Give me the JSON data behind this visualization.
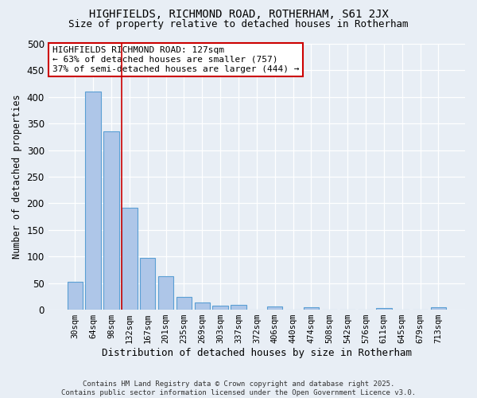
{
  "title1": "HIGHFIELDS, RICHMOND ROAD, ROTHERHAM, S61 2JX",
  "title2": "Size of property relative to detached houses in Rotherham",
  "xlabel": "Distribution of detached houses by size in Rotherham",
  "ylabel": "Number of detached properties",
  "bar_labels": [
    "30sqm",
    "64sqm",
    "98sqm",
    "132sqm",
    "167sqm",
    "201sqm",
    "235sqm",
    "269sqm",
    "303sqm",
    "337sqm",
    "372sqm",
    "406sqm",
    "440sqm",
    "474sqm",
    "508sqm",
    "542sqm",
    "576sqm",
    "611sqm",
    "645sqm",
    "679sqm",
    "713sqm"
  ],
  "bar_values": [
    53,
    410,
    335,
    192,
    97,
    63,
    24,
    13,
    7,
    9,
    0,
    6,
    0,
    4,
    0,
    0,
    0,
    3,
    0,
    0,
    4
  ],
  "bar_color": "#aec6e8",
  "bar_edge_color": "#5a9fd4",
  "background_color": "#e8eef5",
  "grid_color": "#ffffff",
  "vline_color": "#cc0000",
  "annotation_text": "HIGHFIELDS RICHMOND ROAD: 127sqm\n← 63% of detached houses are smaller (757)\n37% of semi-detached houses are larger (444) →",
  "annotation_box_color": "#ffffff",
  "annotation_box_edge": "#cc0000",
  "ylim": [
    0,
    500
  ],
  "yticks": [
    0,
    50,
    100,
    150,
    200,
    250,
    300,
    350,
    400,
    450,
    500
  ],
  "footer1": "Contains HM Land Registry data © Crown copyright and database right 2025.",
  "footer2": "Contains public sector information licensed under the Open Government Licence v3.0."
}
